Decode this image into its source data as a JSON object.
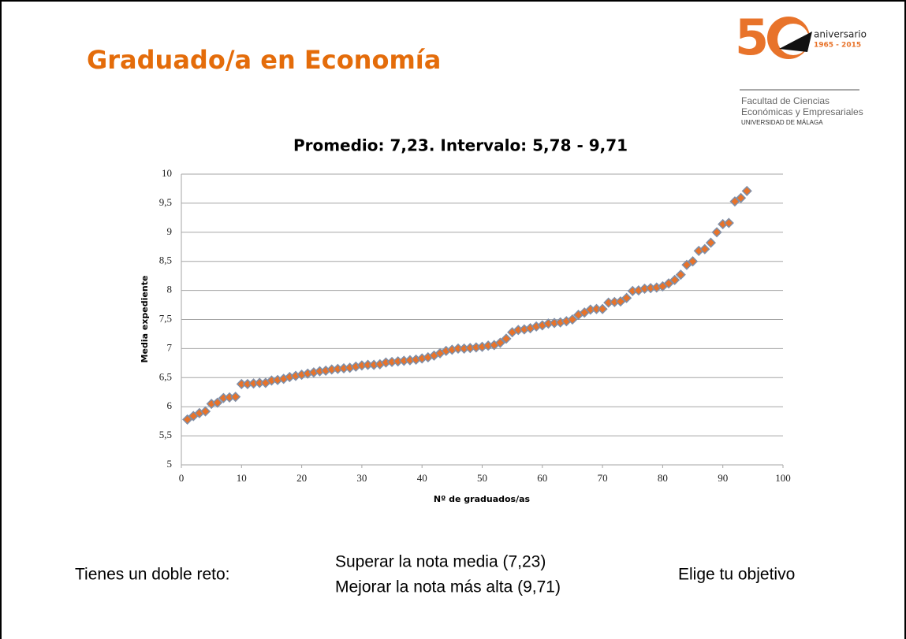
{
  "header": {
    "title": "Graduado/a en Economía"
  },
  "logo": {
    "anniversary": "aniversario",
    "years": "1965 - 2015",
    "faculty_line1": "Facultad de Ciencias",
    "faculty_line2": "Económicas y Empresariales",
    "university": "UNIVERSIDAD DE MÁLAGA"
  },
  "chart_data": {
    "type": "scatter",
    "title": "Promedio: 7,23. Intervalo: 5,78 - 9,71",
    "x_label": "Nº de graduados/as",
    "y_label": "Media expediente",
    "color": "#e8732a",
    "edge_color": "#7f8fa8",
    "grid": true,
    "xlim": [
      0,
      100
    ],
    "xticks": [
      0,
      10,
      20,
      30,
      40,
      50,
      60,
      70,
      80,
      90,
      100
    ],
    "ylim": [
      5,
      10
    ],
    "yticks": [
      5,
      {
        "value": 5.5,
        "label": "5,5"
      },
      6,
      {
        "value": 6.5,
        "label": "6,5"
      },
      7,
      {
        "value": 7.5,
        "label": "7,5"
      },
      8,
      {
        "value": 8.5,
        "label": "8,5"
      },
      9,
      {
        "value": 9.5,
        "label": "9,5"
      },
      10
    ],
    "x": [
      1,
      2,
      3,
      4,
      5,
      6,
      7,
      8,
      9,
      10,
      11,
      12,
      13,
      14,
      15,
      16,
      17,
      18,
      19,
      20,
      21,
      22,
      23,
      24,
      25,
      26,
      27,
      28,
      29,
      30,
      31,
      32,
      33,
      34,
      35,
      36,
      37,
      38,
      39,
      40,
      41,
      42,
      43,
      44,
      45,
      46,
      47,
      48,
      49,
      50,
      51,
      52,
      53,
      54,
      55,
      56,
      57,
      58,
      59,
      60,
      61,
      62,
      63,
      64,
      65,
      66,
      67,
      68,
      69,
      70,
      71,
      72,
      73,
      74,
      75,
      76,
      77,
      78,
      79,
      80,
      81,
      82,
      83,
      84,
      85,
      86,
      87,
      88,
      89,
      90,
      91,
      92,
      93,
      94
    ],
    "values": [
      5.78,
      5.84,
      5.89,
      5.92,
      6.05,
      6.07,
      6.15,
      6.16,
      6.17,
      6.39,
      6.39,
      6.4,
      6.41,
      6.41,
      6.45,
      6.46,
      6.48,
      6.51,
      6.53,
      6.55,
      6.57,
      6.59,
      6.61,
      6.62,
      6.64,
      6.65,
      6.66,
      6.67,
      6.69,
      6.71,
      6.72,
      6.72,
      6.73,
      6.76,
      6.77,
      6.78,
      6.79,
      6.8,
      6.81,
      6.83,
      6.85,
      6.88,
      6.92,
      6.96,
      6.98,
      7.0,
      7.0,
      7.01,
      7.02,
      7.03,
      7.05,
      7.06,
      7.1,
      7.17,
      7.28,
      7.32,
      7.33,
      7.35,
      7.38,
      7.4,
      7.43,
      7.44,
      7.45,
      7.47,
      7.5,
      7.58,
      7.62,
      7.67,
      7.68,
      7.68,
      7.79,
      7.8,
      7.81,
      7.87,
      7.99,
      8.0,
      8.03,
      8.04,
      8.05,
      8.07,
      8.12,
      8.18,
      8.27,
      8.44,
      8.5,
      8.68,
      8.71,
      8.82,
      9.0,
      9.14,
      9.16,
      9.53,
      9.59,
      9.71
    ]
  },
  "footer": {
    "left": "Tienes un doble reto:",
    "middle_line1": "Superar la nota media (7,23)",
    "middle_line2": "Mejorar la nota más alta (9,71)",
    "right": "Elige tu objetivo"
  }
}
